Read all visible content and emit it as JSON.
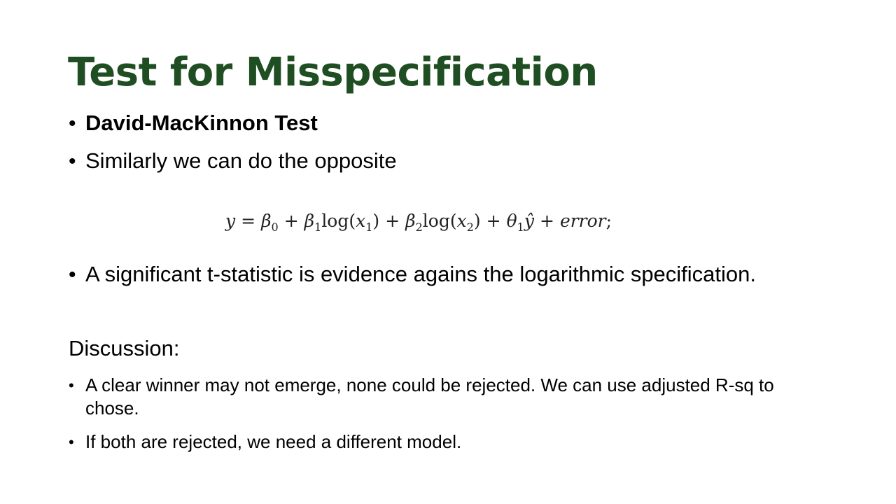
{
  "slide": {
    "title": "Test for Misspecification",
    "bullets": [
      "David-MacKinnon Test",
      "Similarly we can do the opposite",
      "A significant t-statistic is evidence agains the logarithmic specification."
    ],
    "formula": {
      "lhs": "y",
      "eq": "=",
      "b0": "β",
      "b0_sub": "0",
      "plus": "+",
      "b1": "β",
      "b1_sub": "1",
      "log1": "log(",
      "x1": "x",
      "x1_sub": "1",
      "close": ")",
      "b2": "β",
      "b2_sub": "2",
      "log2": "log(",
      "x2": "x",
      "x2_sub": "2",
      "theta": "θ",
      "theta_sub": "1",
      "yhat": "ŷ",
      "error": "error",
      "semi": ";"
    },
    "discussion_heading": "Discussion:",
    "discussion_bullets": [
      "A clear winner may not emerge, none could be rejected. We can use adjusted R-sq to chose.",
      "If both are rejected, we need a different model."
    ]
  }
}
